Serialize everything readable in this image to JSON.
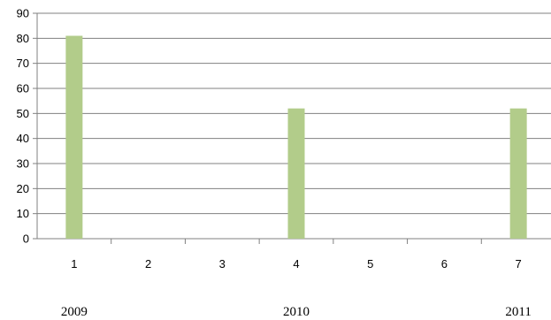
{
  "chart_data": {
    "type": "bar",
    "categories": [
      "1",
      "2",
      "3",
      "4",
      "5",
      "6",
      "7"
    ],
    "values": [
      81,
      null,
      null,
      52,
      null,
      null,
      52
    ],
    "y_ticks": [
      "0",
      "10",
      "20",
      "30",
      "40",
      "50",
      "60",
      "70",
      "80",
      "90"
    ],
    "ylim": [
      0,
      90
    ],
    "grid": true,
    "legend": "none",
    "bar_color": "#b2cc8a",
    "grid_color": "#808080",
    "year_labels": [
      {
        "text": "2009",
        "category": "1"
      },
      {
        "text": "2010",
        "category": "4"
      },
      {
        "text": "2011",
        "category": "7"
      }
    ]
  }
}
